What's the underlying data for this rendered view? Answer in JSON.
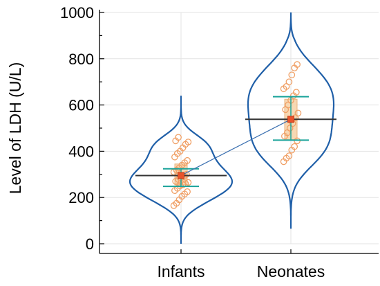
{
  "chart_data": {
    "type": "violin",
    "ylabel": "Level of LDH (U/L)",
    "ylim": [
      0,
      1000
    ],
    "yticks": [
      0,
      200,
      400,
      600,
      800,
      1000
    ],
    "categories": [
      "Infants",
      "Neonates"
    ],
    "grid": true,
    "groups": [
      {
        "name": "Infants",
        "mean": 295,
        "median": 295,
        "sd_range": [
          248,
          324
        ],
        "iqr": [
          255,
          345
        ],
        "violin_range": [
          0,
          640
        ],
        "points": [
          165,
          175,
          190,
          205,
          215,
          225,
          230,
          240,
          250,
          255,
          260,
          265,
          270,
          278,
          285,
          290,
          300,
          310,
          318,
          328,
          340,
          350,
          360,
          375,
          390,
          400,
          415,
          430,
          440,
          445,
          460
        ]
      },
      {
        "name": "Neonates",
        "mean": 538,
        "median": 538,
        "sd_range": [
          448,
          636
        ],
        "iqr": [
          450,
          625
        ],
        "violin_range": [
          65,
          1000
        ],
        "points": [
          355,
          370,
          380,
          405,
          420,
          445,
          465,
          480,
          500,
          520,
          545,
          565,
          580,
          600,
          620,
          640,
          655,
          670,
          680,
          700,
          730,
          760,
          775
        ]
      }
    ],
    "colors": {
      "violin": "#1f5fa8",
      "points": "#f0a066",
      "box_fill": "#f6d2a6",
      "mean_marker": "#e8532b",
      "median_line": "#333333",
      "sd_line": "#1aa39a",
      "connector": "#3a6fb0",
      "grid": "#e3e3e3"
    }
  }
}
